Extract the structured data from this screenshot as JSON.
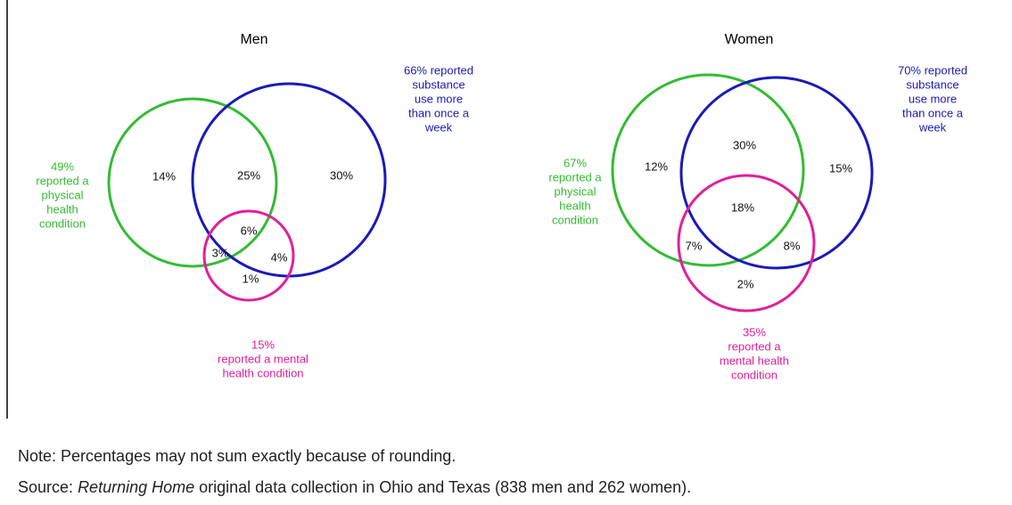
{
  "diagrams": [
    {
      "title": "Men",
      "set_labels": [
        [
          "49%",
          "reported a",
          "physical",
          "health",
          "condition"
        ],
        [
          "66% reported",
          "substance",
          "use more",
          "than once a",
          "week"
        ],
        [
          "15%",
          "reported a mental",
          "health condition"
        ]
      ],
      "regions": [
        "14%",
        "25%",
        "30%",
        "6%",
        "3%",
        "4%",
        "1%"
      ]
    },
    {
      "title": "Women",
      "set_labels": [
        [
          "67%",
          "reported a",
          "physical",
          "health",
          "condition"
        ],
        [
          "70% reported",
          "substance",
          "use more",
          "than once a",
          "week"
        ],
        [
          "35%",
          "reported a",
          "mental health",
          "condition"
        ]
      ],
      "regions": [
        "12%",
        "30%",
        "15%",
        "18%",
        "7%",
        "8%",
        "2%"
      ]
    }
  ],
  "note": "Note: Percentages may not sum exactly because of rounding.",
  "source": {
    "prefix": "Source:",
    "italic": "Returning Home",
    "rest": "original data collection in Ohio and Texas (838 men and 262 women)."
  }
}
